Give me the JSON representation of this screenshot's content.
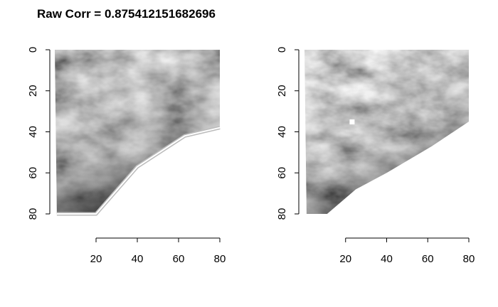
{
  "title": "Raw Corr = 0.875412151682696",
  "chart_data": [
    {
      "type": "heatmap",
      "colormap": "grayscale",
      "xlim": [
        0,
        80
      ],
      "ylim": [
        80,
        0
      ],
      "x_ticks": [
        "20",
        "40",
        "60",
        "80"
      ],
      "y_ticks": [
        "0",
        "20",
        "40",
        "60",
        "80"
      ],
      "valid_boundary": [
        [
          1,
          80
        ],
        [
          20,
          80
        ],
        [
          40,
          57
        ],
        [
          63,
          42
        ],
        [
          80,
          38
        ]
      ],
      "outline_color": "#bcbcbc"
    },
    {
      "type": "heatmap",
      "colormap": "grayscale",
      "xlim": [
        0,
        80
      ],
      "ylim": [
        80,
        0
      ],
      "x_ticks": [
        "20",
        "40",
        "60",
        "80"
      ],
      "y_ticks": [
        "0",
        "20",
        "40",
        "60",
        "80"
      ],
      "valid_boundary": [
        [
          1,
          80
        ],
        [
          11,
          80
        ],
        [
          25,
          68
        ],
        [
          40,
          60
        ],
        [
          62,
          47
        ],
        [
          80,
          35
        ]
      ],
      "marker": {
        "x": 23,
        "y": 35
      }
    }
  ]
}
